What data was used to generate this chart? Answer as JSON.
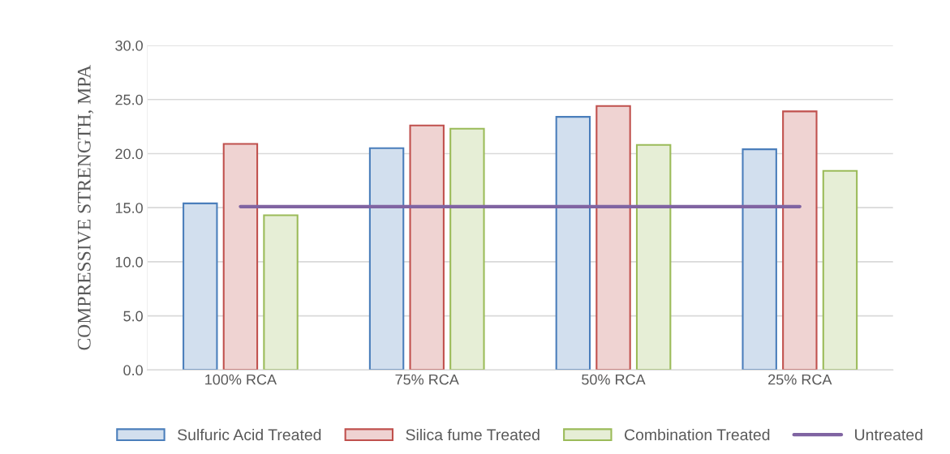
{
  "chart_data": {
    "type": "bar",
    "ylabel": "COMPRESSIVE STRENGTH, MPA",
    "categories": [
      "100% RCA",
      "75% RCA",
      "50% RCA",
      "25% RCA"
    ],
    "series": [
      {
        "name": "Sulfuric Acid Treated",
        "color": "#4a7ebb",
        "values": [
          15.4,
          20.5,
          23.4,
          20.4
        ]
      },
      {
        "name": "Silica fume Treated",
        "color": "#c0504d",
        "values": [
          20.9,
          22.6,
          24.4,
          23.9
        ]
      },
      {
        "name": "Combination Treated",
        "color": "#9bbb59",
        "values": [
          14.3,
          22.3,
          20.8,
          18.4
        ]
      },
      {
        "name": "Untreated",
        "color": "#8064a2",
        "type": "line",
        "values": [
          15.1,
          15.1,
          15.1,
          15.1
        ]
      }
    ],
    "ylim": [
      0,
      30
    ],
    "yticks": [
      {
        "value": 0,
        "label": "0.0"
      },
      {
        "value": 5,
        "label": "5.0"
      },
      {
        "value": 10,
        "label": "10.0"
      },
      {
        "value": 15,
        "label": "15.0"
      },
      {
        "value": 20,
        "label": "20.0"
      },
      {
        "value": 25,
        "label": "25.0"
      },
      {
        "value": 30,
        "label": "30.0"
      }
    ],
    "grid": "y",
    "legend": "bottom"
  }
}
